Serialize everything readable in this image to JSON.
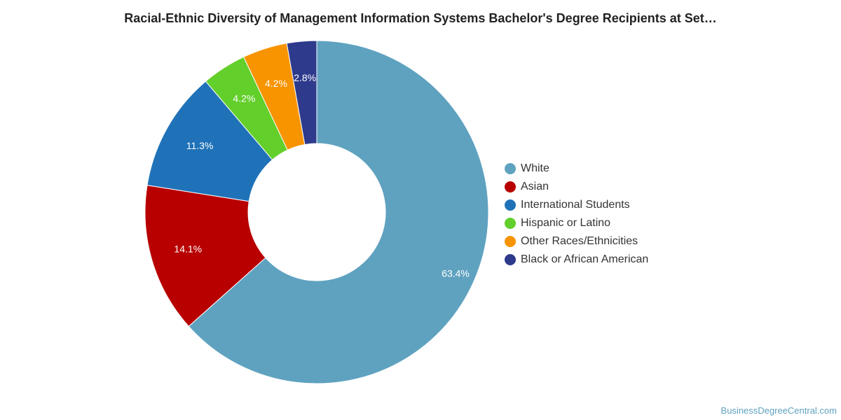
{
  "chart_data": {
    "type": "pie",
    "title": "Racial-Ethnic Diversity of Management Information Systems Bachelor's Degree Recipients at Set…",
    "donut": true,
    "legend_position": "right",
    "slices": [
      {
        "label": "White",
        "value": 63.4,
        "display": "63.4%",
        "color": "#5fa2c0"
      },
      {
        "label": "Asian",
        "value": 14.1,
        "display": "14.1%",
        "color": "#b80000"
      },
      {
        "label": "International Students",
        "value": 11.3,
        "display": "11.3%",
        "color": "#1f72b8"
      },
      {
        "label": "Hispanic or Latino",
        "value": 4.2,
        "display": "4.2%",
        "color": "#63cf2b"
      },
      {
        "label": "Other Races/Ethnicities",
        "value": 4.2,
        "display": "4.2%",
        "color": "#f79400"
      },
      {
        "label": "Black or African American",
        "value": 2.8,
        "display": "2.8%",
        "color": "#2e3a8c"
      }
    ]
  },
  "watermark": "BusinessDegreeCentral.com"
}
